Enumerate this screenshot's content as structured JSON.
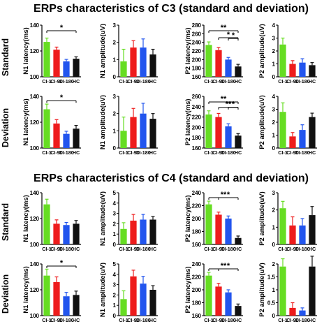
{
  "sections": [
    {
      "title": "ERPs characteristics of C3 (standard and deviation)"
    },
    {
      "title": "ERPs characteristics of C4 (standard and deviation)"
    }
  ],
  "rows": [
    {
      "label": "Standard"
    },
    {
      "label": "Deviation"
    },
    {
      "label": "Standard"
    },
    {
      "label": "Deviation"
    }
  ],
  "colors": {
    "CI-1": "#66dd22",
    "CI-90": "#ee1c1c",
    "CI-180": "#2255ee",
    "HC": "#111111"
  },
  "chart_data": [
    {
      "type": "bar",
      "section": "C3",
      "row": "Standard",
      "ylabel": "N1 latency(ms)",
      "ylim": [
        100,
        140
      ],
      "yticks": [
        100,
        120,
        140
      ],
      "categories": [
        "CI-1",
        "CI-90",
        "CI-180",
        "HC"
      ],
      "values": [
        127,
        121,
        112,
        114
      ],
      "errors": [
        3,
        2,
        1.5,
        1.5
      ],
      "significance": [
        {
          "from": 0,
          "to": 3,
          "label": "*"
        }
      ]
    },
    {
      "type": "bar",
      "section": "C3",
      "row": "Standard",
      "ylabel": "N1 amplitude(uV)",
      "ylim": [
        0,
        3
      ],
      "yticks": [
        0,
        1,
        2,
        3
      ],
      "categories": [
        "CI-1",
        "CI-90",
        "CI-180",
        "HC"
      ],
      "values": [
        0.9,
        1.7,
        1.7,
        1.3
      ],
      "errors": [
        0.7,
        0.4,
        0.5,
        0.3
      ],
      "significance": []
    },
    {
      "type": "bar",
      "section": "C3",
      "row": "Standard",
      "ylabel": "P2 latency(ms)",
      "ylim": [
        160,
        280
      ],
      "yticks": [
        160,
        180,
        200,
        220,
        240,
        260,
        280
      ],
      "categories": [
        "CI-1",
        "CI-90",
        "CI-180",
        "HC"
      ],
      "values": [
        234,
        222,
        200,
        184
      ],
      "errors": [
        7,
        6,
        5,
        5
      ],
      "significance": [
        {
          "from": 0,
          "to": 3,
          "label": "**"
        },
        {
          "from": 1,
          "to": 3,
          "label": "*"
        },
        {
          "from": 2,
          "to": 3,
          "label": "*"
        }
      ]
    },
    {
      "type": "bar",
      "section": "C3",
      "row": "Standard",
      "ylabel": "P2 amplitude(uV)",
      "ylim": [
        0,
        4
      ],
      "yticks": [
        0,
        1,
        2,
        3,
        4
      ],
      "categories": [
        "CI-1",
        "CI-90",
        "CI-180",
        "HC"
      ],
      "values": [
        2.5,
        1.0,
        1.1,
        0.9
      ],
      "errors": [
        0.5,
        0.25,
        0.3,
        0.2
      ],
      "significance": []
    },
    {
      "type": "bar",
      "section": "C3",
      "row": "Deviation",
      "ylabel": "N1 latency(ms)",
      "ylim": [
        100,
        140
      ],
      "yticks": [
        100,
        120,
        140
      ],
      "categories": [
        "CI-1",
        "CI-90",
        "CI-180",
        "HC"
      ],
      "values": [
        130,
        119,
        111,
        115
      ],
      "errors": [
        4,
        3,
        2,
        2.5
      ],
      "significance": [
        {
          "from": 0,
          "to": 3,
          "label": "*"
        }
      ]
    },
    {
      "type": "bar",
      "section": "C3",
      "row": "Deviation",
      "ylabel": "N1 amplitude(uV)",
      "ylim": [
        0,
        3
      ],
      "yticks": [
        0,
        1,
        2,
        3
      ],
      "categories": [
        "CI-1",
        "CI-90",
        "CI-180",
        "HC"
      ],
      "values": [
        1.0,
        1.8,
        2.0,
        1.7
      ],
      "errors": [
        0.8,
        0.5,
        0.6,
        0.3
      ],
      "significance": []
    },
    {
      "type": "bar",
      "section": "C3",
      "row": "Deviation",
      "ylabel": "P2 latency(ms)",
      "ylim": [
        160,
        260
      ],
      "yticks": [
        160,
        180,
        200,
        220,
        240,
        260
      ],
      "categories": [
        "CI-1",
        "CI-90",
        "CI-180",
        "HC"
      ],
      "values": [
        225,
        220,
        202,
        184
      ],
      "errors": [
        7,
        7,
        5,
        4
      ],
      "significance": [
        {
          "from": 0,
          "to": 3,
          "label": "**"
        },
        {
          "from": 1,
          "to": 3,
          "label": "**"
        },
        {
          "from": 2,
          "to": 3,
          "label": "*"
        }
      ]
    },
    {
      "type": "bar",
      "section": "C3",
      "row": "Deviation",
      "ylabel": "P2 amplitude(uV)",
      "ylim": [
        0,
        4
      ],
      "yticks": [
        0,
        1,
        2,
        3,
        4
      ],
      "categories": [
        "CI-1",
        "CI-90",
        "CI-180",
        "HC"
      ],
      "values": [
        2.8,
        0.9,
        1.4,
        2.4
      ],
      "errors": [
        0.7,
        0.3,
        0.4,
        0.3
      ],
      "significance": []
    },
    {
      "type": "bar",
      "section": "C4",
      "row": "Standard",
      "ylabel": "N1 latency(ms)",
      "ylim": [
        100,
        140
      ],
      "yticks": [
        100,
        120,
        140
      ],
      "categories": [
        "CI-1",
        "CI-90",
        "CI-180",
        "HC"
      ],
      "values": [
        131,
        116,
        115,
        116
      ],
      "errors": [
        4,
        3,
        2,
        2.5
      ],
      "significance": []
    },
    {
      "type": "bar",
      "section": "C4",
      "row": "Standard",
      "ylabel": "N1 amplitude(uV)",
      "ylim": [
        0,
        5
      ],
      "yticks": [
        0,
        1,
        2,
        3,
        4,
        5
      ],
      "categories": [
        "CI-1",
        "CI-90",
        "CI-180",
        "HC"
      ],
      "values": [
        1.5,
        2.3,
        2.4,
        2.4
      ],
      "errors": [
        0.6,
        0.6,
        0.5,
        0.3
      ],
      "significance": []
    },
    {
      "type": "bar",
      "section": "C4",
      "row": "Standard",
      "ylabel": "P2 latency(ms)",
      "ylim": [
        160,
        240
      ],
      "yticks": [
        160,
        180,
        200,
        220,
        240
      ],
      "categories": [
        "CI-1",
        "CI-90",
        "CI-180",
        "HC"
      ],
      "values": [
        222,
        206,
        200,
        170
      ],
      "errors": [
        5,
        4,
        4,
        3
      ],
      "significance": [
        {
          "from": 0,
          "to": 3,
          "label": "**"
        },
        {
          "from": 1,
          "to": 3,
          "label": "*"
        }
      ]
    },
    {
      "type": "bar",
      "section": "C4",
      "row": "Standard",
      "ylabel": "P2 amplitude(uV)",
      "ylim": [
        0,
        3
      ],
      "yticks": [
        0,
        1,
        2,
        3
      ],
      "categories": [
        "CI-1",
        "CI-90",
        "CI-180",
        "HC"
      ],
      "values": [
        2.1,
        1.1,
        1.1,
        1.7
      ],
      "errors": [
        0.4,
        0.5,
        0.4,
        0.5
      ],
      "significance": []
    },
    {
      "type": "bar",
      "section": "C4",
      "row": "Deviation",
      "ylabel": "N1 latency(ms)",
      "ylim": [
        100,
        140
      ],
      "yticks": [
        100,
        120,
        140
      ],
      "categories": [
        "CI-1",
        "CI-90",
        "CI-180",
        "HC"
      ],
      "values": [
        131,
        126,
        115,
        116
      ],
      "errors": [
        5,
        4,
        3,
        3
      ],
      "significance": [
        {
          "from": 0,
          "to": 3,
          "label": "*"
        }
      ]
    },
    {
      "type": "bar",
      "section": "C4",
      "row": "Deviation",
      "ylabel": "N1 amplitude(uV)",
      "ylim": [
        0,
        5
      ],
      "yticks": [
        0,
        1,
        2,
        3,
        4,
        5
      ],
      "categories": [
        "CI-1",
        "CI-90",
        "CI-180",
        "HC"
      ],
      "values": [
        1.6,
        3.8,
        3.1,
        2.5
      ],
      "errors": [
        0.8,
        0.6,
        0.7,
        0.4
      ],
      "significance": []
    },
    {
      "type": "bar",
      "section": "C4",
      "row": "Deviation",
      "ylabel": "P2 latency(ms)",
      "ylim": [
        160,
        240
      ],
      "yticks": [
        160,
        180,
        200,
        220,
        240
      ],
      "categories": [
        "CI-1",
        "CI-90",
        "CI-180",
        "HC"
      ],
      "values": [
        222,
        205,
        196,
        175
      ],
      "errors": [
        5,
        5,
        4,
        3
      ],
      "significance": [
        {
          "from": 0,
          "to": 3,
          "label": "**"
        },
        {
          "from": 1,
          "to": 3,
          "label": "*"
        }
      ]
    },
    {
      "type": "bar",
      "section": "C4",
      "row": "Deviation",
      "ylabel": "P2 amplitude(uV)",
      "ylim": [
        0,
        2
      ],
      "yticks": [
        0.0,
        0.5,
        1.0,
        1.5,
        2.0
      ],
      "categories": [
        "CI-1",
        "CI-90",
        "CI-180",
        "HC"
      ],
      "values": [
        1.9,
        0.3,
        0.2,
        1.9
      ],
      "errors": [
        0.3,
        0.2,
        0.1,
        0.4
      ],
      "significance": []
    }
  ]
}
